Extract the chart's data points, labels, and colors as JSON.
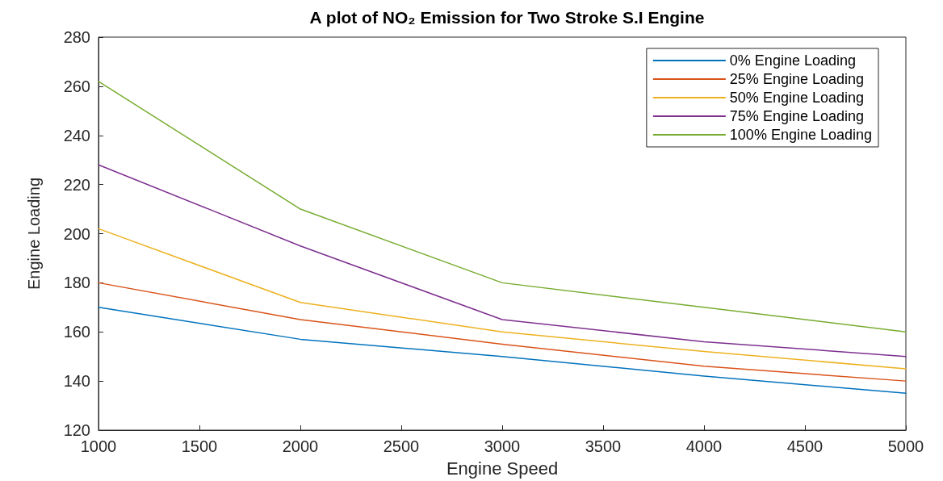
{
  "chart_data": {
    "type": "line",
    "title": "A plot of NO₂ Emission for Two Stroke S.I Engine",
    "xlabel": "Engine Speed",
    "ylabel": "Engine Loading",
    "x": [
      1000,
      2000,
      3000,
      4000,
      5000
    ],
    "series": [
      {
        "name": "0% Engine Loading",
        "color": "#0072bd",
        "values": [
          170,
          157,
          150,
          142,
          135
        ]
      },
      {
        "name": "25% Engine Loading",
        "color": "#d95319",
        "values": [
          180,
          165,
          155,
          146,
          140
        ]
      },
      {
        "name": "50% Engine Loading",
        "color": "#edb120",
        "values": [
          202,
          172,
          160,
          152,
          145
        ]
      },
      {
        "name": "75% Engine Loading",
        "color": "#7e2f8e",
        "values": [
          228,
          195,
          165,
          156,
          150
        ]
      },
      {
        "name": "100% Engine Loading",
        "color": "#77ac30",
        "values": [
          262,
          210,
          180,
          170,
          160
        ]
      }
    ],
    "xlim": [
      1000,
      5000
    ],
    "xticks": [
      1000,
      1500,
      2000,
      2500,
      3000,
      3500,
      4000,
      4500,
      5000
    ],
    "ylim": [
      120,
      280
    ],
    "yticks": [
      120,
      140,
      160,
      180,
      200,
      220,
      240,
      260,
      280
    ],
    "legend": "top right",
    "grid": false,
    "marker": "none",
    "line_style": "solid"
  }
}
